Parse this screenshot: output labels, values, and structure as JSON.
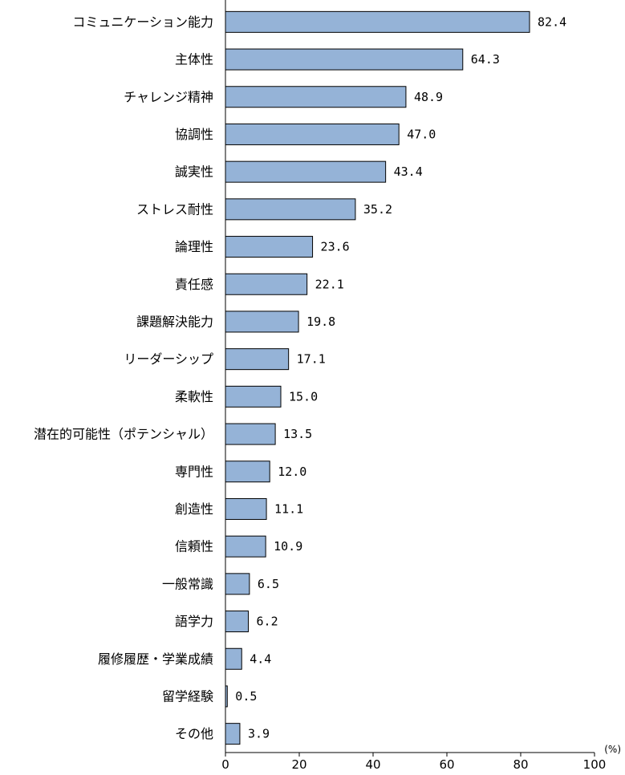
{
  "chart_data": {
    "type": "bar",
    "orientation": "horizontal",
    "categories": [
      "コミュニケーション能力",
      "主体性",
      "チャレンジ精神",
      "協調性",
      "誠実性",
      "ストレス耐性",
      "論理性",
      "責任感",
      "課題解決能力",
      "リーダーシップ",
      "柔軟性",
      "潜在的可能性（ポテンシャル）",
      "専門性",
      "創造性",
      "信頼性",
      "一般常識",
      "語学力",
      "履修履歴・学業成績",
      "留学経験",
      "その他"
    ],
    "values": [
      82.4,
      64.3,
      48.9,
      47.0,
      43.4,
      35.2,
      23.6,
      22.1,
      19.8,
      17.1,
      15.0,
      13.5,
      12.0,
      11.1,
      10.9,
      6.5,
      6.2,
      4.4,
      0.5,
      3.9
    ],
    "value_labels": [
      "82.4",
      "64.3",
      "48.9",
      "47.0",
      "43.4",
      "35.2",
      "23.6",
      "22.1",
      "19.8",
      "17.1",
      "15.0",
      "13.5",
      "12.0",
      "11.1",
      "10.9",
      "6.5",
      "6.2",
      "4.4",
      "0.5",
      "3.9"
    ],
    "xlim": [
      0,
      100
    ],
    "xticks": [
      "0",
      "20",
      "40",
      "60",
      "80",
      "100"
    ],
    "xunit": "(%)",
    "grid": false,
    "colors": {
      "bar_fill": "#95B3D7",
      "bar_stroke": "#000000",
      "axis": "#000000"
    }
  }
}
